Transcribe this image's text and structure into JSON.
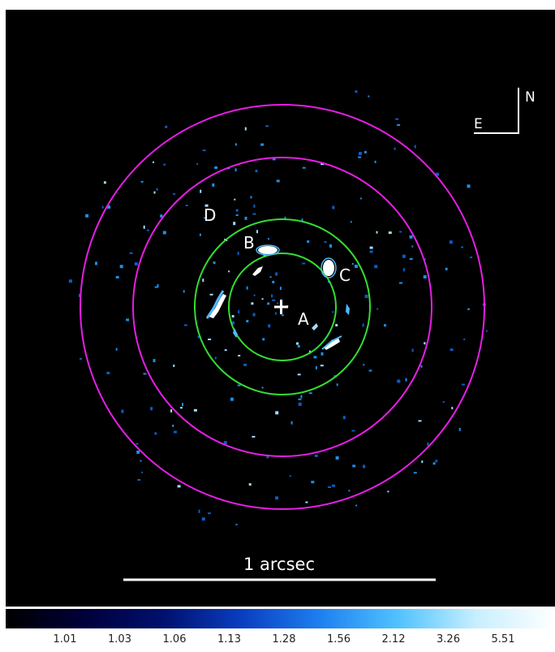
{
  "image": {
    "labels": {
      "a": "A",
      "b": "B",
      "c": "C",
      "d": "D"
    },
    "compass": {
      "north": "N",
      "east": "E"
    },
    "scalebar_label": "1 arcsec",
    "colors": {
      "background": "#000000",
      "outer_annulus": "#e61ee6",
      "inner_annulus": "#33dd33",
      "source": "#ffffff",
      "noise": "#1c8fe6"
    },
    "colorbar": {
      "ticks": [
        "1.01",
        "1.03",
        "1.06",
        "1.13",
        "1.28",
        "1.56",
        "2.12",
        "3.26",
        "5.51"
      ],
      "gradient": [
        "#000000",
        "#00003a",
        "#00106e",
        "#0a3dc0",
        "#1d7ff0",
        "#50c2ff",
        "#c8efff",
        "#ffffff"
      ]
    }
  }
}
